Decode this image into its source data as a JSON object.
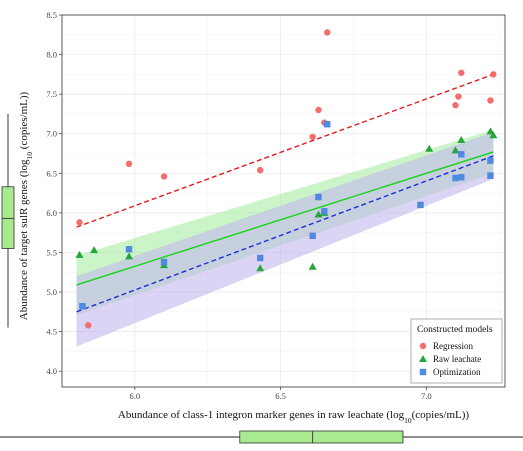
{
  "chart_data": {
    "type": "scatter",
    "xlabel": {
      "before": "Abundance of class-1 integron marker genes in raw leachate (log",
      "sub": "10",
      "after": "(copies/mL))"
    },
    "ylabel": {
      "before": "Abundance of target sulR genes (log",
      "sub": "10",
      "after": " (copies/mL))"
    },
    "xlim": [
      5.75,
      7.27
    ],
    "ylim": [
      3.8,
      8.5
    ],
    "x_ticks": [
      "6.0",
      "6.5",
      "7.0"
    ],
    "y_ticks": [
      "4.0",
      "4.5",
      "5.0",
      "5.5",
      "6.0",
      "6.5",
      "7.0",
      "7.5",
      "8.0",
      "8.5"
    ],
    "grid": true,
    "legend": {
      "title": "Constructed models",
      "position": "bottom-right",
      "entries": [
        "Regression",
        "Raw leachate",
        "Optimization"
      ]
    },
    "series": [
      {
        "name": "Regression",
        "marker": "circle",
        "color": "#f46d6d",
        "points": [
          [
            5.81,
            5.88
          ],
          [
            5.84,
            4.58
          ],
          [
            5.98,
            6.62
          ],
          [
            6.1,
            6.46
          ],
          [
            6.43,
            6.54
          ],
          [
            6.61,
            6.96
          ],
          [
            6.63,
            7.3
          ],
          [
            6.65,
            7.14
          ],
          [
            6.66,
            8.28
          ],
          [
            7.1,
            7.36
          ],
          [
            7.11,
            7.47
          ],
          [
            7.12,
            7.77
          ],
          [
            7.22,
            7.42
          ],
          [
            7.23,
            7.75
          ]
        ]
      },
      {
        "name": "Raw leachate",
        "marker": "triangle",
        "color": "#26a63a",
        "points": [
          [
            5.81,
            5.47
          ],
          [
            5.86,
            5.53
          ],
          [
            5.98,
            5.45
          ],
          [
            6.1,
            5.34
          ],
          [
            6.43,
            5.3
          ],
          [
            6.61,
            5.32
          ],
          [
            6.63,
            5.98
          ],
          [
            6.65,
            6.0
          ],
          [
            7.01,
            6.81
          ],
          [
            7.1,
            6.79
          ],
          [
            7.12,
            6.92
          ],
          [
            7.22,
            7.03
          ],
          [
            7.23,
            6.98
          ]
        ]
      },
      {
        "name": "Optimization",
        "marker": "square",
        "color": "#4d8ae0",
        "points": [
          [
            5.82,
            4.82
          ],
          [
            5.98,
            5.54
          ],
          [
            6.1,
            5.38
          ],
          [
            6.43,
            5.43
          ],
          [
            6.61,
            5.71
          ],
          [
            6.63,
            6.2
          ],
          [
            6.65,
            6.02
          ],
          [
            6.66,
            7.12
          ],
          [
            6.98,
            6.1
          ],
          [
            7.1,
            6.44
          ],
          [
            7.12,
            6.45
          ],
          [
            7.12,
            6.74
          ],
          [
            7.22,
            6.66
          ],
          [
            7.22,
            6.47
          ]
        ]
      }
    ],
    "fits": [
      {
        "series": "Regression",
        "style": "dashed",
        "color": "#e8181c",
        "x": [
          5.8,
          7.23
        ],
        "y": [
          5.82,
          7.75
        ]
      },
      {
        "series": "Raw leachate",
        "style": "solid",
        "color": "#18d418",
        "x": [
          5.8,
          7.23
        ],
        "y": [
          5.09,
          6.77
        ],
        "band_lower": [
          4.71,
          6.5
        ],
        "band_upper": [
          5.46,
          7.05
        ],
        "band_color": "#a9efa4"
      },
      {
        "series": "Optimization",
        "style": "dashed",
        "color": "#1c2fd8",
        "x": [
          5.8,
          7.23
        ],
        "y": [
          4.75,
          6.72
        ],
        "band_lower": [
          4.31,
          6.43
        ],
        "band_upper": [
          5.2,
          7.02
        ],
        "band_color": "#c3b8ef"
      }
    ],
    "marginal_boxplots": {
      "x": {
        "min": 5.5,
        "q1": 6.36,
        "median": 6.61,
        "q3": 6.92,
        "max": 7.7
      },
      "y": {
        "min": 4.55,
        "q1": 5.55,
        "median": 5.93,
        "q3": 6.33,
        "max": 7.25
      }
    },
    "box_color": "#a9e98f"
  }
}
